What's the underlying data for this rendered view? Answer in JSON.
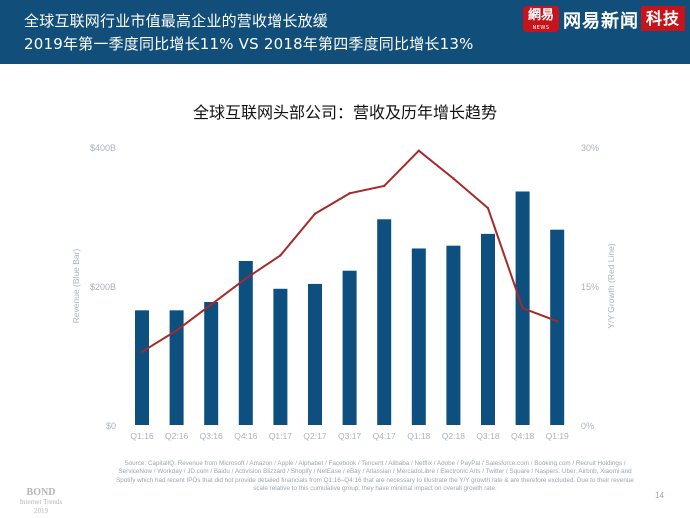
{
  "header": {
    "line1": "全球互联网行业市值最高企业的营收增长放缓",
    "line2": "2019年第一季度同比增长11% VS 2018年第四季度同比增长13%"
  },
  "logo": {
    "badge_text": "網易",
    "badge_sub": "NEWS",
    "name": "网易新闻",
    "tag": "科技"
  },
  "chart_data": {
    "type": "bar",
    "title": "全球互联网头部公司：营收及历年增长趋势",
    "categories": [
      "Q1:16",
      "Q2:16",
      "Q3:16",
      "Q4:16",
      "Q1:17",
      "Q2:17",
      "Q3:17",
      "Q4:17",
      "Q1:18",
      "Q2:18",
      "Q3:18",
      "Q4:18",
      "Q1:19"
    ],
    "ylabel": "Revenue (Blue Bar)",
    "y2label": "Y/Y Growth (Red Line)",
    "ylim": [
      0,
      400
    ],
    "y2lim": [
      0,
      30
    ],
    "yticks": [
      "$0",
      "$200B",
      "$400B"
    ],
    "y2ticks": [
      "0%",
      "15%",
      "30%"
    ],
    "grid": false,
    "series": [
      {
        "type": "bar",
        "color": "#0d4f7f",
        "values": [
          165,
          165,
          177,
          236,
          196,
          203,
          222,
          296,
          254,
          258,
          275,
          336,
          281
        ]
      },
      {
        "type": "line",
        "color": "#a52a2a",
        "values": [
          7.9,
          10.2,
          13.0,
          15.8,
          18.3,
          22.8,
          25.0,
          25.8,
          29.6,
          26.6,
          23.4,
          12.6,
          11.2
        ]
      }
    ]
  },
  "source": {
    "text": "Source: CapitalIQ. Revenue from Microsoft / Amazon / Apple / Alphabet / Facebook / Tencent / Alibaba / Netflix / Adobe / PayPal / Salesforce.com / Booking.com / Recruit Holdings / ServiceNow / Workday / JD.com / Baidu / Activision Blizzard / Shopify / NetEase / eBay / Atlassian / MercadoLibre / Electronic Arts / Twitter / Square / Naspers. Uber, Airbnb, Xiaomi and Spotify which had recent IPOs that did not provide detailed financials from Q1:16–Q4:16 that are necessary to illustrate the Y/Y growth rate & are therefore excluded. Due to their revenue scale relative to this cumulative group, they have minimal impact on overall growth rate."
  },
  "footer": {
    "bond_title": "BOND",
    "bond_sub1": "Internet Trends",
    "bond_sub2": "2019",
    "page_number": "14"
  }
}
